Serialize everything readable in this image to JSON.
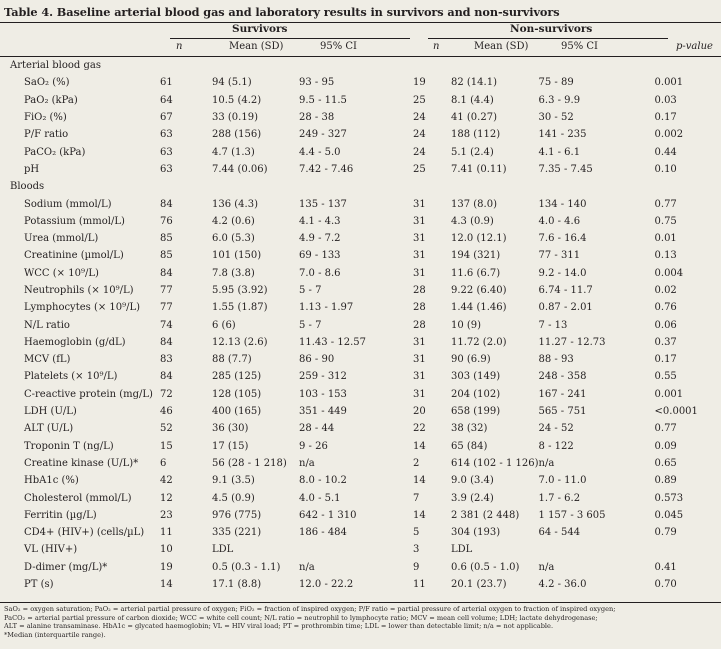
{
  "title": "Table 4. Baseline arterial blood gas and laboratory results in survivors and non-survivors",
  "headers": {
    "survivors": "Survivors",
    "non_survivors": "Non-survivors",
    "n": "n",
    "mean_sd": "Mean (SD)",
    "ci": "95% CI",
    "p_value": "p-value"
  },
  "sections": [
    {
      "name": "Arterial blood gas",
      "rows": [
        {
          "label": "SaO₂ (%)",
          "n1": "61",
          "mean1": "94 (5.1)",
          "ci1": "93 - 95",
          "n2": "19",
          "mean2": "82 (14.1)",
          "ci2": "75 - 89",
          "p": "0.001"
        },
        {
          "label": "PaO₂ (kPa)",
          "n1": "64",
          "mean1": "10.5 (4.2)",
          "ci1": "9.5 - 11.5",
          "n2": "25",
          "mean2": "8.1 (4.4)",
          "ci2": "6.3 - 9.9",
          "p": "0.03"
        },
        {
          "label": "FiO₂ (%)",
          "n1": "67",
          "mean1": "33 (0.19)",
          "ci1": "28 - 38",
          "n2": "24",
          "mean2": "41 (0.27)",
          "ci2": "30 - 52",
          "p": "0.17"
        },
        {
          "label": "P/F ratio",
          "n1": "63",
          "mean1": "288 (156)",
          "ci1": "249 - 327",
          "n2": "24",
          "mean2": "188 (112)",
          "ci2": "141 - 235",
          "p": "0.002"
        },
        {
          "label": "PaCO₂ (kPa)",
          "n1": "63",
          "mean1": "4.7 (1.3)",
          "ci1": "4.4 - 5.0",
          "n2": "24",
          "mean2": "5.1 (2.4)",
          "ci2": "4.1 - 6.1",
          "p": "0.44"
        },
        {
          "label": "pH",
          "n1": "63",
          "mean1": "7.44 (0.06)",
          "ci1": "7.42 - 7.46",
          "n2": "25",
          "mean2": "7.41 (0.11)",
          "ci2": "7.35 - 7.45",
          "p": "0.10"
        }
      ]
    },
    {
      "name": "Bloods",
      "rows": [
        {
          "label": "Sodium (mmol/L)",
          "n1": "84",
          "mean1": "136 (4.3)",
          "ci1": "135 - 137",
          "n2": "31",
          "mean2": "137 (8.0)",
          "ci2": "134 - 140",
          "p": "0.77"
        },
        {
          "label": "Potassium (mmol/L)",
          "n1": "76",
          "mean1": "4.2 (0.6)",
          "ci1": "4.1 - 4.3",
          "n2": "31",
          "mean2": "4.3 (0.9)",
          "ci2": "4.0 - 4.6",
          "p": "0.75"
        },
        {
          "label": "Urea (mmol/L)",
          "n1": "85",
          "mean1": "6.0 (5.3)",
          "ci1": "4.9 - 7.2",
          "n2": "31",
          "mean2": "12.0 (12.1)",
          "ci2": "7.6 - 16.4",
          "p": "0.01"
        },
        {
          "label": "Creatinine (µmol/L)",
          "n1": "85",
          "mean1": "101 (150)",
          "ci1": "69 - 133",
          "n2": "31",
          "mean2": "194 (321)",
          "ci2": "77 - 311",
          "p": "0.13"
        },
        {
          "label": "WCC (× 10⁹/L)",
          "n1": "84",
          "mean1": "7.8 (3.8)",
          "ci1": "7.0 - 8.6",
          "n2": "31",
          "mean2": "11.6 (6.7)",
          "ci2": "9.2 - 14.0",
          "p": "0.004"
        },
        {
          "label": "Neutrophils (× 10⁹/L)",
          "n1": "77",
          "mean1": "5.95 (3.92)",
          "ci1": "5 - 7",
          "n2": "28",
          "mean2": "9.22 (6.40)",
          "ci2": "6.74 - 11.7",
          "p": "0.02"
        },
        {
          "label": "Lymphocytes (× 10⁹/L)",
          "n1": "77",
          "mean1": "1.55 (1.87)",
          "ci1": "1.13 - 1.97",
          "n2": "28",
          "mean2": "1.44 (1.46)",
          "ci2": "0.87 - 2.01",
          "p": "0.76"
        },
        {
          "label": "N/L ratio",
          "n1": "74",
          "mean1": "6 (6)",
          "ci1": "5 - 7",
          "n2": "28",
          "mean2": "10 (9)",
          "ci2": "7 - 13",
          "p": "0.06"
        },
        {
          "label": "Haemoglobin (g/dL)",
          "n1": "84",
          "mean1": "12.13 (2.6)",
          "ci1": "11.43 - 12.57",
          "n2": "31",
          "mean2": "11.72 (2.0)",
          "ci2": "11.27 - 12.73",
          "p": "0.37"
        },
        {
          "label": "MCV (fL)",
          "n1": "83",
          "mean1": "88 (7.7)",
          "ci1": "86 - 90",
          "n2": "31",
          "mean2": "90 (6.9)",
          "ci2": "88 - 93",
          "p": "0.17"
        },
        {
          "label": "Platelets (× 10⁹/L)",
          "n1": "84",
          "mean1": "285 (125)",
          "ci1": "259 - 312",
          "n2": "31",
          "mean2": "303 (149)",
          "ci2": "248 - 358",
          "p": "0.55"
        },
        {
          "label": "C-reactive protein (mg/L)",
          "n1": "72",
          "mean1": "128 (105)",
          "ci1": "103 - 153",
          "n2": "31",
          "mean2": "204 (102)",
          "ci2": "167 - 241",
          "p": "0.001"
        },
        {
          "label": "LDH (U/L)",
          "n1": "46",
          "mean1": "400 (165)",
          "ci1": "351 - 449",
          "n2": "20",
          "mean2": "658 (199)",
          "ci2": "565 - 751",
          "p": "<0.0001"
        },
        {
          "label": "ALT (U/L)",
          "n1": "52",
          "mean1": "36 (30)",
          "ci1": "28 - 44",
          "n2": "22",
          "mean2": "38 (32)",
          "ci2": "24 - 52",
          "p": "0.77"
        },
        {
          "label": "Troponin T (ng/L)",
          "n1": "15",
          "mean1": "17 (15)",
          "ci1": "9 - 26",
          "n2": "14",
          "mean2": "65 (84)",
          "ci2": "8 - 122",
          "p": "0.09"
        },
        {
          "label": "Creatine kinase (U/L)*",
          "n1": "6",
          "mean1": "56 (28 - 1 218)",
          "ci1": "n/a",
          "n2": "2",
          "mean2": "614 (102 - 1 126)",
          "ci2": "n/a",
          "p": "0.65"
        },
        {
          "label": "HbA1c (%)",
          "n1": "42",
          "mean1": "9.1 (3.5)",
          "ci1": "8.0 - 10.2",
          "n2": "14",
          "mean2": "9.0 (3.4)",
          "ci2": "7.0 - 11.0",
          "p": "0.89"
        },
        {
          "label": "Cholesterol (mmol/L)",
          "n1": "12",
          "mean1": "4.5 (0.9)",
          "ci1": "4.0 - 5.1",
          "n2": "7",
          "mean2": "3.9 (2.4)",
          "ci2": "1.7 - 6.2",
          "p": "0.573"
        },
        {
          "label": "Ferritin (µg/L)",
          "n1": "23",
          "mean1": "976 (775)",
          "ci1": "642 - 1 310",
          "n2": "14",
          "mean2": "2 381 (2 448)",
          "ci2": "1 157 - 3 605",
          "p": "0.045"
        },
        {
          "label": "CD4+ (HIV+) (cells/µL)",
          "n1": "11",
          "mean1": "335 (221)",
          "ci1": "186 - 484",
          "n2": "5",
          "mean2": "304 (193)",
          "ci2": "64 - 544",
          "p": "0.79"
        },
        {
          "label": "VL (HIV+)",
          "n1": "10",
          "mean1": "LDL",
          "ci1": "",
          "n2": "3",
          "mean2": "LDL",
          "ci2": "",
          "p": ""
        },
        {
          "label": "D-dimer (mg/L)*",
          "n1": "19",
          "mean1": "0.5 (0.3 - 1.1)",
          "ci1": "n/a",
          "n2": "9",
          "mean2": "0.6 (0.5 - 1.0)",
          "ci2": "n/a",
          "p": "0.41"
        },
        {
          "label": "PT (s)",
          "n1": "14",
          "mean1": "17.1 (8.8)",
          "ci1": "12.0 - 22.2",
          "n2": "11",
          "mean2": "20.1 (23.7)",
          "ci2": "4.2 - 36.0",
          "p": "0.70"
        }
      ]
    }
  ],
  "footnotes": [
    "SaO₂ = oxygen saturation; PaO₂ = arterial partial pressure of oxygen; FiO₂ = fraction of inspired oxygen; P/F ratio = partial pressure of arterial oxygen to fraction of inspired oxygen;",
    "PaCO₂ = arterial partial pressure of carbon dioxide; WCC = white cell count; N/L ratio = neutrophil to lymphocyte ratio; MCV = mean cell volume; LDH; lactate dehydrogenase;",
    "ALT = alanine transaminase. HbA1c = glycated haemoglobin; VL = HIV viral load; PT = prothrombin time; LDL = lower than detectable limit; n/a = not applicable.",
    "*Median (interquartile range)."
  ]
}
